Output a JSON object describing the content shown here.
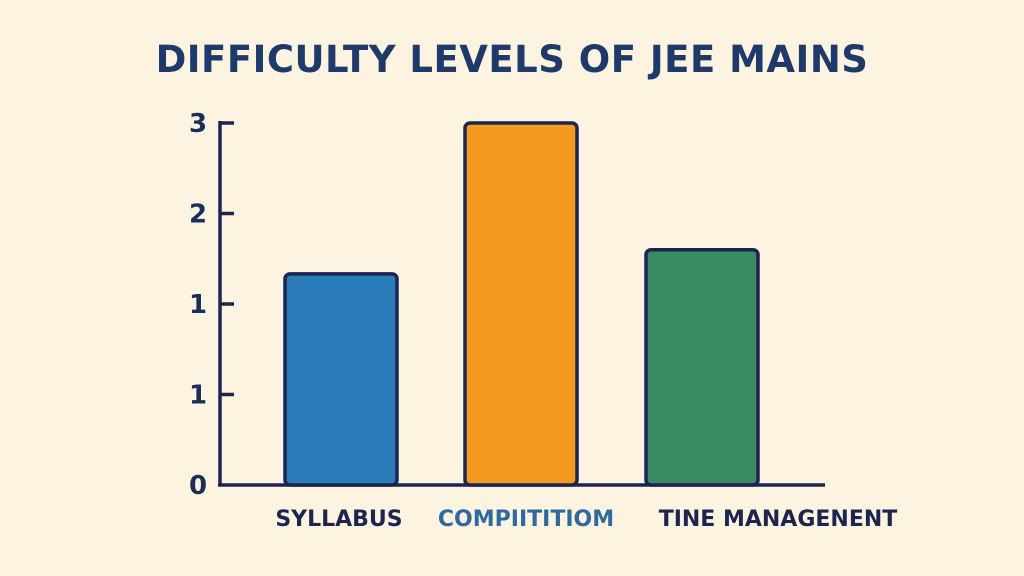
{
  "chart_data": {
    "type": "bar",
    "title": "DIFFICULTY LEVELS OF JEE MAINS",
    "xlabel": "",
    "ylabel": "",
    "categories": [
      "SYLLABUS",
      "COMPIITITIOM",
      "TINE MANAGENENT"
    ],
    "values": [
      1.75,
      3,
      1.95
    ],
    "ylim": [
      0,
      3
    ],
    "y_tick_labels": [
      "0",
      "1",
      "1",
      "2",
      "3"
    ],
    "grid": false,
    "legend": "none",
    "colors": {
      "bars": [
        "#2a7bb9",
        "#f39a1f",
        "#3a8a64"
      ],
      "bar_outline": "#1b2550",
      "axis": "#1b2550",
      "title": "#1d3a6b",
      "category_labels": [
        "#1b2550",
        "#2e6aa0",
        "#1b2550"
      ],
      "background": "#fcf4e0"
    }
  }
}
